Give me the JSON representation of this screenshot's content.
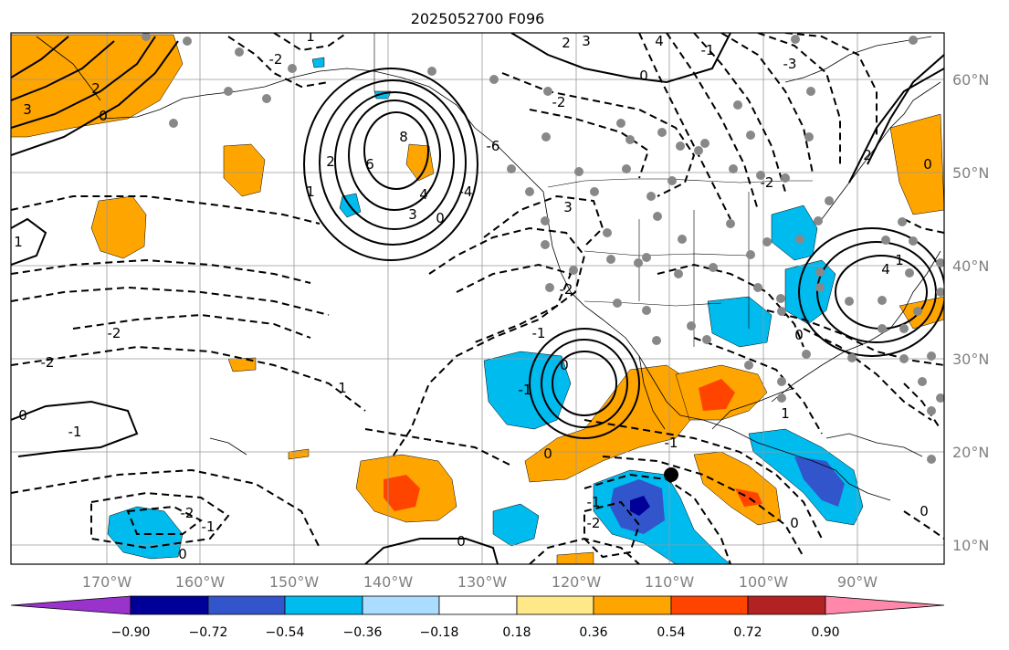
{
  "title": "2025052700 F096",
  "lon_ticks": [
    "170°W",
    "160°W",
    "150°W",
    "140°W",
    "130°W",
    "120°W",
    "110°W",
    "100°W",
    "90°W"
  ],
  "lat_ticks": [
    "60°N",
    "50°N",
    "40°N",
    "30°N",
    "20°N",
    "10°N"
  ],
  "colorbar": {
    "labels": [
      "−0.90",
      "−0.72",
      "−0.54",
      "−0.36",
      "−0.18",
      "0.18",
      "0.36",
      "0.54",
      "0.72",
      "0.90"
    ],
    "colors": [
      "#9933cc",
      "#000099",
      "#3355cc",
      "#00bbee",
      "#aaddff",
      "#ffffff",
      "#ffe888",
      "#ffa500",
      "#ff4400",
      "#b22222",
      "#ff88aa"
    ]
  },
  "contour_labels": [
    "2",
    "3",
    "0",
    "-2",
    "-2",
    "1",
    "-1",
    "8",
    "6",
    "4",
    "3",
    "2",
    "1",
    "0",
    "-2",
    "-4",
    "-6",
    "2",
    "3",
    "4",
    "-2",
    "0",
    "-1",
    "-3",
    "3",
    "0",
    "-1",
    "0",
    "-1",
    "-2",
    "1",
    "0",
    "-1",
    "4",
    "2",
    "1",
    "0",
    "-2",
    "0",
    "0",
    "-2",
    "-1",
    "1",
    "-1",
    "-2",
    "1",
    "0",
    "0",
    "0"
  ]
}
